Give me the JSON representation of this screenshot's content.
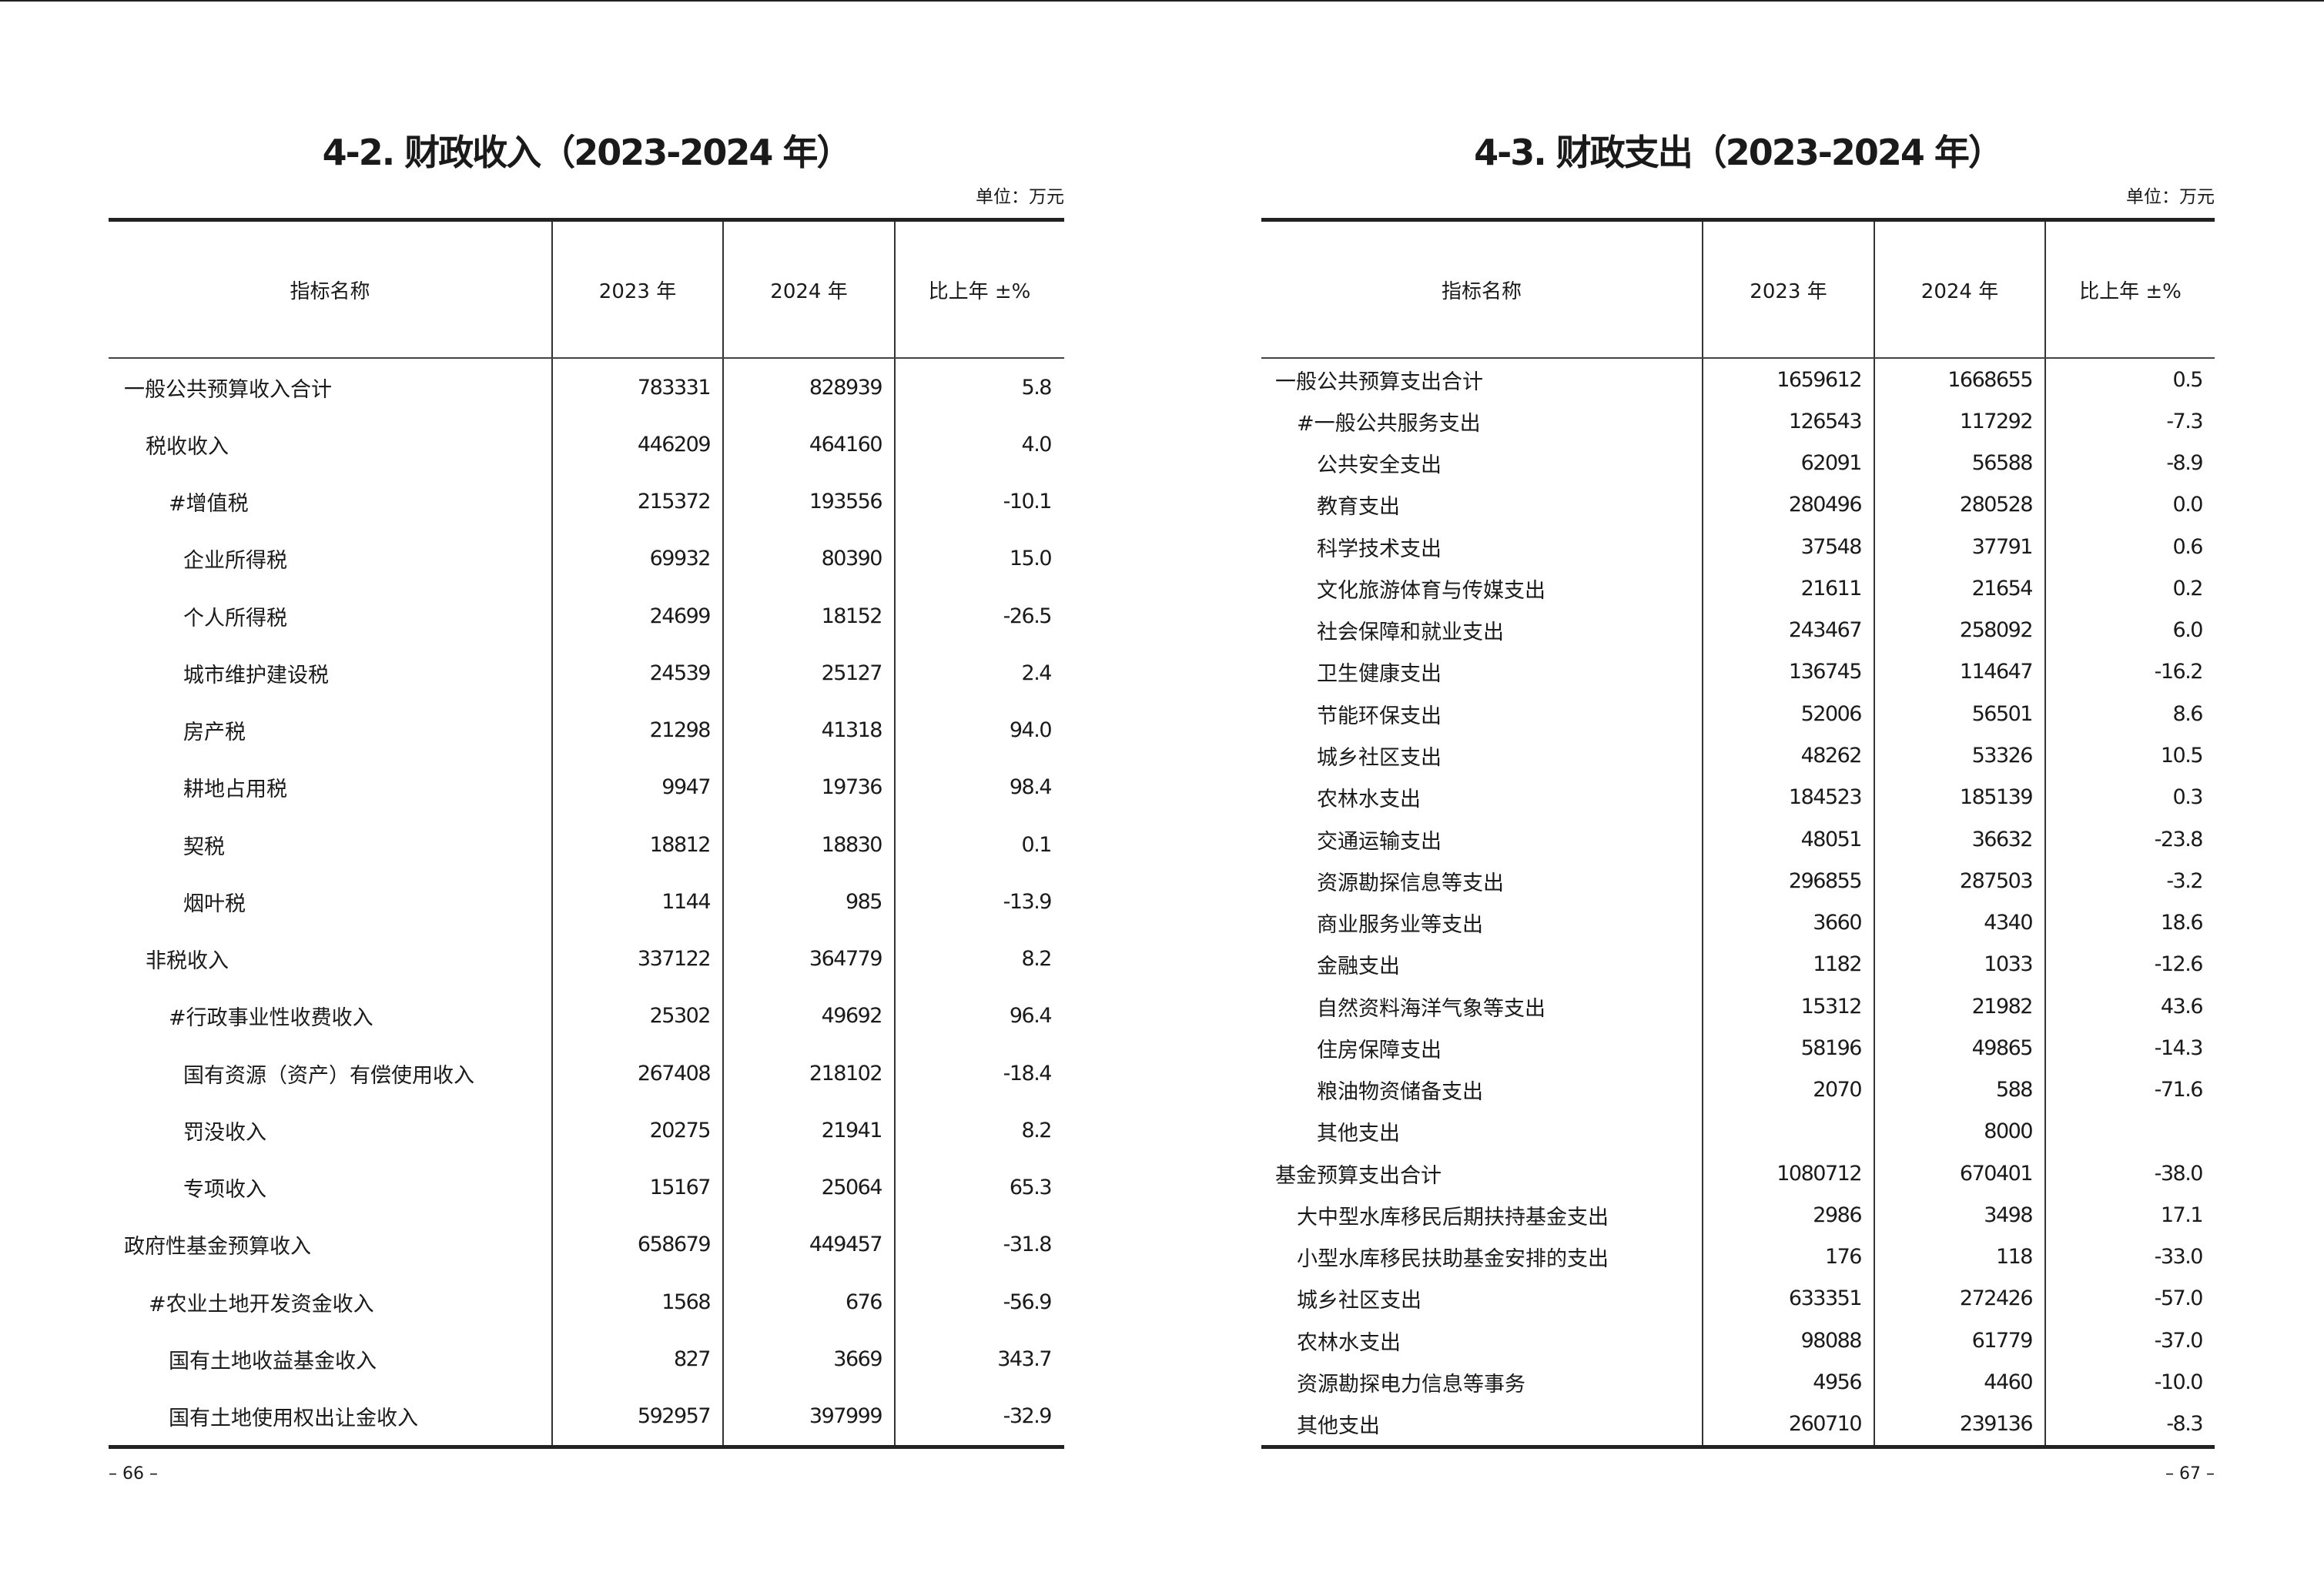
{
  "left": {
    "title": "4-2. 财政收入（2023-2024 年）",
    "unit": "单位：万元",
    "headers": [
      "指标名称",
      "2023 年",
      "2024 年",
      "比上年 ±%"
    ],
    "rows": [
      {
        "name": "一般公共预算收入合计",
        "level": 0,
        "v2023": "783331",
        "v2024": "828939",
        "pct": "5.8"
      },
      {
        "name": "税收收入",
        "level": 1,
        "v2023": "446209",
        "v2024": "464160",
        "pct": "4.0"
      },
      {
        "name": "#增值税",
        "level": 2,
        "v2023": "215372",
        "v2024": "193556",
        "pct": "-10.1"
      },
      {
        "name": "企业所得税",
        "level": 3,
        "v2023": "69932",
        "v2024": "80390",
        "pct": "15.0"
      },
      {
        "name": "个人所得税",
        "level": 3,
        "v2023": "24699",
        "v2024": "18152",
        "pct": "-26.5"
      },
      {
        "name": "城市维护建设税",
        "level": 3,
        "v2023": "24539",
        "v2024": "25127",
        "pct": "2.4"
      },
      {
        "name": "房产税",
        "level": 3,
        "v2023": "21298",
        "v2024": "41318",
        "pct": "94.0"
      },
      {
        "name": "耕地占用税",
        "level": 3,
        "v2023": "9947",
        "v2024": "19736",
        "pct": "98.4"
      },
      {
        "name": "契税",
        "level": 3,
        "v2023": "18812",
        "v2024": "18830",
        "pct": "0.1"
      },
      {
        "name": "烟叶税",
        "level": 3,
        "v2023": "1144",
        "v2024": "985",
        "pct": "-13.9"
      },
      {
        "name": "非税收入",
        "level": 1,
        "v2023": "337122",
        "v2024": "364779",
        "pct": "8.2"
      },
      {
        "name": "#行政事业性收费收入",
        "level": 2,
        "v2023": "25302",
        "v2024": "49692",
        "pct": "96.4"
      },
      {
        "name": "国有资源（资产）有偿使用收入",
        "level": 3,
        "v2023": "267408",
        "v2024": "218102",
        "pct": "-18.4"
      },
      {
        "name": "罚没收入",
        "level": 3,
        "v2023": "20275",
        "v2024": "21941",
        "pct": "8.2"
      },
      {
        "name": "专项收入",
        "level": 3,
        "v2023": "15167",
        "v2024": "25064",
        "pct": "65.3"
      },
      {
        "name": "政府性基金预算收入",
        "level": 0,
        "v2023": "658679",
        "v2024": "449457",
        "pct": "-31.8"
      },
      {
        "name": "#农业土地开发资金收入",
        "level": 1.5,
        "v2023": "1568",
        "v2024": "676",
        "pct": "-56.9"
      },
      {
        "name": "国有土地收益基金收入",
        "level": 2,
        "v2023": "827",
        "v2024": "3669",
        "pct": "343.7"
      },
      {
        "name": "国有土地使用权出让金收入",
        "level": 2,
        "v2023": "592957",
        "v2024": "397999",
        "pct": "-32.9"
      }
    ],
    "page_number": "– 66 –"
  },
  "right": {
    "title": "4-3. 财政支出（2023-2024 年）",
    "unit": "单位：万元",
    "headers": [
      "指标名称",
      "2023 年",
      "2024 年",
      "比上年 ±%"
    ],
    "rows": [
      {
        "name": "一般公共预算支出合计",
        "level": 0,
        "v2023": "1659612",
        "v2024": "1668655",
        "pct": "0.5"
      },
      {
        "name": "#一般公共服务支出",
        "level": 1,
        "v2023": "126543",
        "v2024": "117292",
        "pct": "-7.3"
      },
      {
        "name": "公共安全支出",
        "level": 2,
        "v2023": "62091",
        "v2024": "56588",
        "pct": "-8.9"
      },
      {
        "name": "教育支出",
        "level": 2,
        "v2023": "280496",
        "v2024": "280528",
        "pct": "0.0"
      },
      {
        "name": "科学技术支出",
        "level": 2,
        "v2023": "37548",
        "v2024": "37791",
        "pct": "0.6"
      },
      {
        "name": "文化旅游体育与传媒支出",
        "level": 2,
        "v2023": "21611",
        "v2024": "21654",
        "pct": "0.2"
      },
      {
        "name": "社会保障和就业支出",
        "level": 2,
        "v2023": "243467",
        "v2024": "258092",
        "pct": "6.0"
      },
      {
        "name": "卫生健康支出",
        "level": 2,
        "v2023": "136745",
        "v2024": "114647",
        "pct": "-16.2"
      },
      {
        "name": "节能环保支出",
        "level": 2,
        "v2023": "52006",
        "v2024": "56501",
        "pct": "8.6"
      },
      {
        "name": "城乡社区支出",
        "level": 2,
        "v2023": "48262",
        "v2024": "53326",
        "pct": "10.5"
      },
      {
        "name": "农林水支出",
        "level": 2,
        "v2023": "184523",
        "v2024": "185139",
        "pct": "0.3"
      },
      {
        "name": "交通运输支出",
        "level": 2,
        "v2023": "48051",
        "v2024": "36632",
        "pct": "-23.8"
      },
      {
        "name": "资源勘探信息等支出",
        "level": 2,
        "v2023": "296855",
        "v2024": "287503",
        "pct": "-3.2"
      },
      {
        "name": "商业服务业等支出",
        "level": 2,
        "v2023": "3660",
        "v2024": "4340",
        "pct": "18.6"
      },
      {
        "name": "金融支出",
        "level": 2,
        "v2023": "1182",
        "v2024": "1033",
        "pct": "-12.6"
      },
      {
        "name": "自然资料海洋气象等支出",
        "level": 2,
        "v2023": "15312",
        "v2024": "21982",
        "pct": "43.6"
      },
      {
        "name": "住房保障支出",
        "level": 2,
        "v2023": "58196",
        "v2024": "49865",
        "pct": "-14.3"
      },
      {
        "name": "粮油物资储备支出",
        "level": 2,
        "v2023": "2070",
        "v2024": "588",
        "pct": "-71.6"
      },
      {
        "name": "其他支出",
        "level": 2,
        "v2023": "",
        "v2024": "8000",
        "pct": ""
      },
      {
        "name": "基金预算支出合计",
        "level": 0,
        "v2023": "1080712",
        "v2024": "670401",
        "pct": "-38.0"
      },
      {
        "name": "大中型水库移民后期扶持基金支出",
        "level": 1,
        "v2023": "2986",
        "v2024": "3498",
        "pct": "17.1"
      },
      {
        "name": "小型水库移民扶助基金安排的支出",
        "level": 1,
        "v2023": "176",
        "v2024": "118",
        "pct": "-33.0"
      },
      {
        "name": "城乡社区支出",
        "level": 1,
        "v2023": "633351",
        "v2024": "272426",
        "pct": "-57.0"
      },
      {
        "name": "农林水支出",
        "level": 1,
        "v2023": "98088",
        "v2024": "61779",
        "pct": "-37.0"
      },
      {
        "name": "资源勘探电力信息等事务",
        "level": 1,
        "v2023": "4956",
        "v2024": "4460",
        "pct": "-10.0"
      },
      {
        "name": "其他支出",
        "level": 1,
        "v2023": "260710",
        "v2024": "239136",
        "pct": "-8.3"
      }
    ],
    "page_number": "– 67 –"
  }
}
